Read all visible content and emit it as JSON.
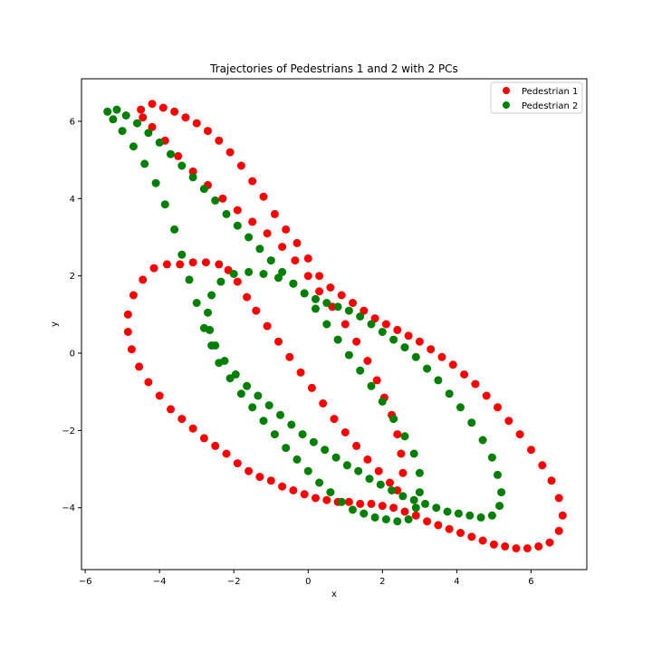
{
  "chart_data": {
    "type": "scatter",
    "title": "Trajectories of Pedestrians 1 and 2 with 2 PCs",
    "xlabel": "x",
    "ylabel": "y",
    "xlim": [
      -6.1,
      7.5
    ],
    "ylim": [
      -5.6,
      7.1
    ],
    "xticks": [
      -6,
      -4,
      -2,
      0,
      2,
      4,
      6
    ],
    "yticks": [
      -4,
      -2,
      0,
      2,
      4,
      6
    ],
    "grid": false,
    "legend_position": "top-right",
    "series": [
      {
        "name": "Pedestrian 1",
        "color": "#ff0000",
        "points": [
          [
            -4.5,
            6.3
          ],
          [
            -4.2,
            6.45
          ],
          [
            -3.9,
            6.35
          ],
          [
            -3.6,
            6.25
          ],
          [
            -3.3,
            6.1
          ],
          [
            -3.0,
            5.95
          ],
          [
            -2.7,
            5.75
          ],
          [
            -2.4,
            5.5
          ],
          [
            -2.1,
            5.2
          ],
          [
            -1.8,
            4.85
          ],
          [
            -1.5,
            4.45
          ],
          [
            -1.2,
            4.05
          ],
          [
            -0.9,
            3.6
          ],
          [
            -0.6,
            3.2
          ],
          [
            -0.3,
            2.85
          ],
          [
            0.0,
            2.45
          ],
          [
            0.3,
            2.0
          ],
          [
            0.6,
            1.7
          ],
          [
            0.9,
            1.5
          ],
          [
            1.2,
            1.3
          ],
          [
            1.5,
            1.1
          ],
          [
            1.8,
            0.9
          ],
          [
            2.1,
            0.75
          ],
          [
            2.4,
            0.6
          ],
          [
            2.7,
            0.45
          ],
          [
            3.0,
            0.3
          ],
          [
            3.3,
            0.1
          ],
          [
            3.6,
            -0.1
          ],
          [
            3.9,
            -0.3
          ],
          [
            4.2,
            -0.55
          ],
          [
            4.5,
            -0.8
          ],
          [
            4.8,
            -1.1
          ],
          [
            5.1,
            -1.4
          ],
          [
            5.4,
            -1.75
          ],
          [
            5.7,
            -2.1
          ],
          [
            6.0,
            -2.5
          ],
          [
            6.3,
            -2.9
          ],
          [
            6.55,
            -3.3
          ],
          [
            6.75,
            -3.75
          ],
          [
            6.85,
            -4.2
          ],
          [
            6.75,
            -4.6
          ],
          [
            6.5,
            -4.9
          ],
          [
            6.2,
            -5.0
          ],
          [
            5.9,
            -5.05
          ],
          [
            5.6,
            -5.05
          ],
          [
            5.3,
            -5.0
          ],
          [
            5.0,
            -4.95
          ],
          [
            4.7,
            -4.85
          ],
          [
            4.4,
            -4.75
          ],
          [
            4.1,
            -4.65
          ],
          [
            3.8,
            -4.55
          ],
          [
            3.5,
            -4.45
          ],
          [
            3.2,
            -4.35
          ],
          [
            2.9,
            -4.2
          ],
          [
            2.6,
            -4.1
          ],
          [
            2.3,
            -4.0
          ],
          [
            2.0,
            -3.95
          ],
          [
            1.7,
            -3.9
          ],
          [
            1.4,
            -3.9
          ],
          [
            1.1,
            -3.85
          ],
          [
            0.8,
            -3.85
          ],
          [
            0.5,
            -3.8
          ],
          [
            0.2,
            -3.75
          ],
          [
            -0.1,
            -3.65
          ],
          [
            -0.4,
            -3.55
          ],
          [
            -0.7,
            -3.45
          ],
          [
            -1.0,
            -3.3
          ],
          [
            -1.3,
            -3.2
          ],
          [
            -1.6,
            -3.05
          ],
          [
            -1.9,
            -2.85
          ],
          [
            -2.2,
            -2.6
          ],
          [
            -2.5,
            -2.4
          ],
          [
            -2.8,
            -2.2
          ],
          [
            -3.1,
            -1.95
          ],
          [
            -3.4,
            -1.7
          ],
          [
            -3.7,
            -1.45
          ],
          [
            -4.0,
            -1.1
          ],
          [
            -4.3,
            -0.75
          ],
          [
            -4.55,
            -0.35
          ],
          [
            -4.75,
            0.1
          ],
          [
            -4.85,
            0.55
          ],
          [
            -4.85,
            1.0
          ],
          [
            -4.7,
            1.5
          ],
          [
            -4.45,
            1.9
          ],
          [
            -4.15,
            2.2
          ],
          [
            -3.8,
            2.3
          ],
          [
            -3.45,
            2.3
          ],
          [
            -3.1,
            2.35
          ],
          [
            -2.75,
            2.35
          ],
          [
            -2.4,
            2.3
          ],
          [
            -2.15,
            2.15
          ],
          [
            -1.9,
            1.85
          ],
          [
            -1.65,
            1.45
          ],
          [
            -1.4,
            1.1
          ],
          [
            -1.1,
            0.7
          ],
          [
            -0.8,
            0.3
          ],
          [
            -0.5,
            -0.1
          ],
          [
            -0.2,
            -0.5
          ],
          [
            0.1,
            -0.9
          ],
          [
            0.4,
            -1.3
          ],
          [
            0.7,
            -1.7
          ],
          [
            1.0,
            -2.05
          ],
          [
            1.3,
            -2.4
          ],
          [
            1.6,
            -2.75
          ],
          [
            1.9,
            -3.05
          ],
          [
            2.2,
            -3.35
          ],
          [
            2.4,
            -3.55
          ],
          [
            2.55,
            -3.1
          ],
          [
            2.5,
            -2.6
          ],
          [
            2.4,
            -2.1
          ],
          [
            2.25,
            -1.6
          ],
          [
            2.05,
            -1.15
          ],
          [
            1.85,
            -0.7
          ],
          [
            1.6,
            -0.2
          ],
          [
            1.3,
            0.3
          ],
          [
            1.0,
            0.75
          ],
          [
            0.65,
            1.2
          ],
          [
            0.3,
            1.6
          ],
          [
            0.0,
            2.0
          ],
          [
            -0.35,
            2.4
          ],
          [
            -0.7,
            2.75
          ],
          [
            -1.1,
            3.1
          ],
          [
            -1.5,
            3.4
          ],
          [
            -1.9,
            3.7
          ],
          [
            -2.3,
            4.0
          ],
          [
            -2.7,
            4.35
          ],
          [
            -3.1,
            4.7
          ],
          [
            -3.5,
            5.1
          ],
          [
            -3.85,
            5.5
          ],
          [
            -4.2,
            5.85
          ],
          [
            -4.45,
            6.1
          ]
        ]
      },
      {
        "name": "Pedestrian 2",
        "color": "#008000",
        "points": [
          [
            -5.4,
            6.25
          ],
          [
            -5.15,
            6.3
          ],
          [
            -4.9,
            6.15
          ],
          [
            -4.6,
            5.95
          ],
          [
            -4.3,
            5.7
          ],
          [
            -4.0,
            5.45
          ],
          [
            -3.7,
            5.15
          ],
          [
            -3.4,
            4.85
          ],
          [
            -3.1,
            4.55
          ],
          [
            -2.8,
            4.25
          ],
          [
            -2.5,
            3.95
          ],
          [
            -2.2,
            3.6
          ],
          [
            -1.9,
            3.3
          ],
          [
            -1.6,
            3.0
          ],
          [
            -1.3,
            2.7
          ],
          [
            -1.0,
            2.4
          ],
          [
            -0.7,
            2.1
          ],
          [
            -0.4,
            1.8
          ],
          [
            -0.1,
            1.55
          ],
          [
            0.2,
            1.4
          ],
          [
            0.5,
            1.3
          ],
          [
            0.8,
            1.2
          ],
          [
            1.1,
            1.1
          ],
          [
            1.4,
            0.95
          ],
          [
            1.7,
            0.75
          ],
          [
            2.0,
            0.55
          ],
          [
            2.3,
            0.35
          ],
          [
            2.6,
            0.15
          ],
          [
            2.9,
            -0.1
          ],
          [
            3.2,
            -0.4
          ],
          [
            3.5,
            -0.7
          ],
          [
            3.8,
            -1.05
          ],
          [
            4.1,
            -1.4
          ],
          [
            4.4,
            -1.8
          ],
          [
            4.7,
            -2.25
          ],
          [
            4.95,
            -2.7
          ],
          [
            5.1,
            -3.15
          ],
          [
            5.2,
            -3.6
          ],
          [
            5.15,
            -3.95
          ],
          [
            4.95,
            -4.2
          ],
          [
            4.65,
            -4.25
          ],
          [
            4.35,
            -4.2
          ],
          [
            4.05,
            -4.15
          ],
          [
            3.75,
            -4.1
          ],
          [
            3.45,
            -4.0
          ],
          [
            3.15,
            -3.9
          ],
          [
            2.85,
            -3.8
          ],
          [
            2.55,
            -3.7
          ],
          [
            2.25,
            -3.55
          ],
          [
            1.95,
            -3.4
          ],
          [
            1.65,
            -3.25
          ],
          [
            1.35,
            -3.05
          ],
          [
            1.05,
            -2.9
          ],
          [
            0.75,
            -2.7
          ],
          [
            0.45,
            -2.5
          ],
          [
            0.15,
            -2.3
          ],
          [
            -0.15,
            -2.1
          ],
          [
            -0.45,
            -1.85
          ],
          [
            -0.75,
            -1.6
          ],
          [
            -1.05,
            -1.35
          ],
          [
            -1.35,
            -1.1
          ],
          [
            -1.65,
            -0.85
          ],
          [
            -1.95,
            -0.55
          ],
          [
            -2.25,
            -0.2
          ],
          [
            -2.5,
            0.2
          ],
          [
            -2.65,
            0.6
          ],
          [
            -2.7,
            1.05
          ],
          [
            -2.6,
            1.5
          ],
          [
            -2.35,
            1.85
          ],
          [
            -2.0,
            2.05
          ],
          [
            -1.6,
            2.1
          ],
          [
            -1.2,
            2.05
          ],
          [
            -0.8,
            1.95
          ],
          [
            -0.4,
            1.8
          ],
          [
            -0.1,
            1.55
          ],
          [
            0.2,
            1.15
          ],
          [
            0.5,
            0.75
          ],
          [
            0.8,
            0.35
          ],
          [
            1.1,
            -0.05
          ],
          [
            1.4,
            -0.45
          ],
          [
            1.7,
            -0.85
          ],
          [
            2.0,
            -1.25
          ],
          [
            2.3,
            -1.7
          ],
          [
            2.6,
            -2.15
          ],
          [
            2.85,
            -2.6
          ],
          [
            3.0,
            -3.1
          ],
          [
            3.0,
            -3.6
          ],
          [
            2.9,
            -4.0
          ],
          [
            2.7,
            -4.3
          ],
          [
            2.4,
            -4.35
          ],
          [
            2.1,
            -4.3
          ],
          [
            1.8,
            -4.25
          ],
          [
            1.5,
            -4.15
          ],
          [
            1.2,
            -4.05
          ],
          [
            0.9,
            -3.85
          ],
          [
            0.6,
            -3.6
          ],
          [
            0.3,
            -3.35
          ],
          [
            0.0,
            -3.05
          ],
          [
            -0.3,
            -2.75
          ],
          [
            -0.6,
            -2.45
          ],
          [
            -0.9,
            -2.1
          ],
          [
            -1.2,
            -1.75
          ],
          [
            -1.5,
            -1.4
          ],
          [
            -1.8,
            -1.05
          ],
          [
            -2.1,
            -0.65
          ],
          [
            -2.4,
            -0.25
          ],
          [
            -2.6,
            0.2
          ],
          [
            -2.8,
            0.65
          ],
          [
            -3.0,
            1.3
          ],
          [
            -3.2,
            1.9
          ],
          [
            -3.4,
            2.55
          ],
          [
            -3.6,
            3.2
          ],
          [
            -3.85,
            3.85
          ],
          [
            -4.1,
            4.4
          ],
          [
            -4.4,
            4.9
          ],
          [
            -4.7,
            5.35
          ],
          [
            -5.0,
            5.75
          ],
          [
            -5.25,
            6.05
          ]
        ]
      }
    ]
  }
}
